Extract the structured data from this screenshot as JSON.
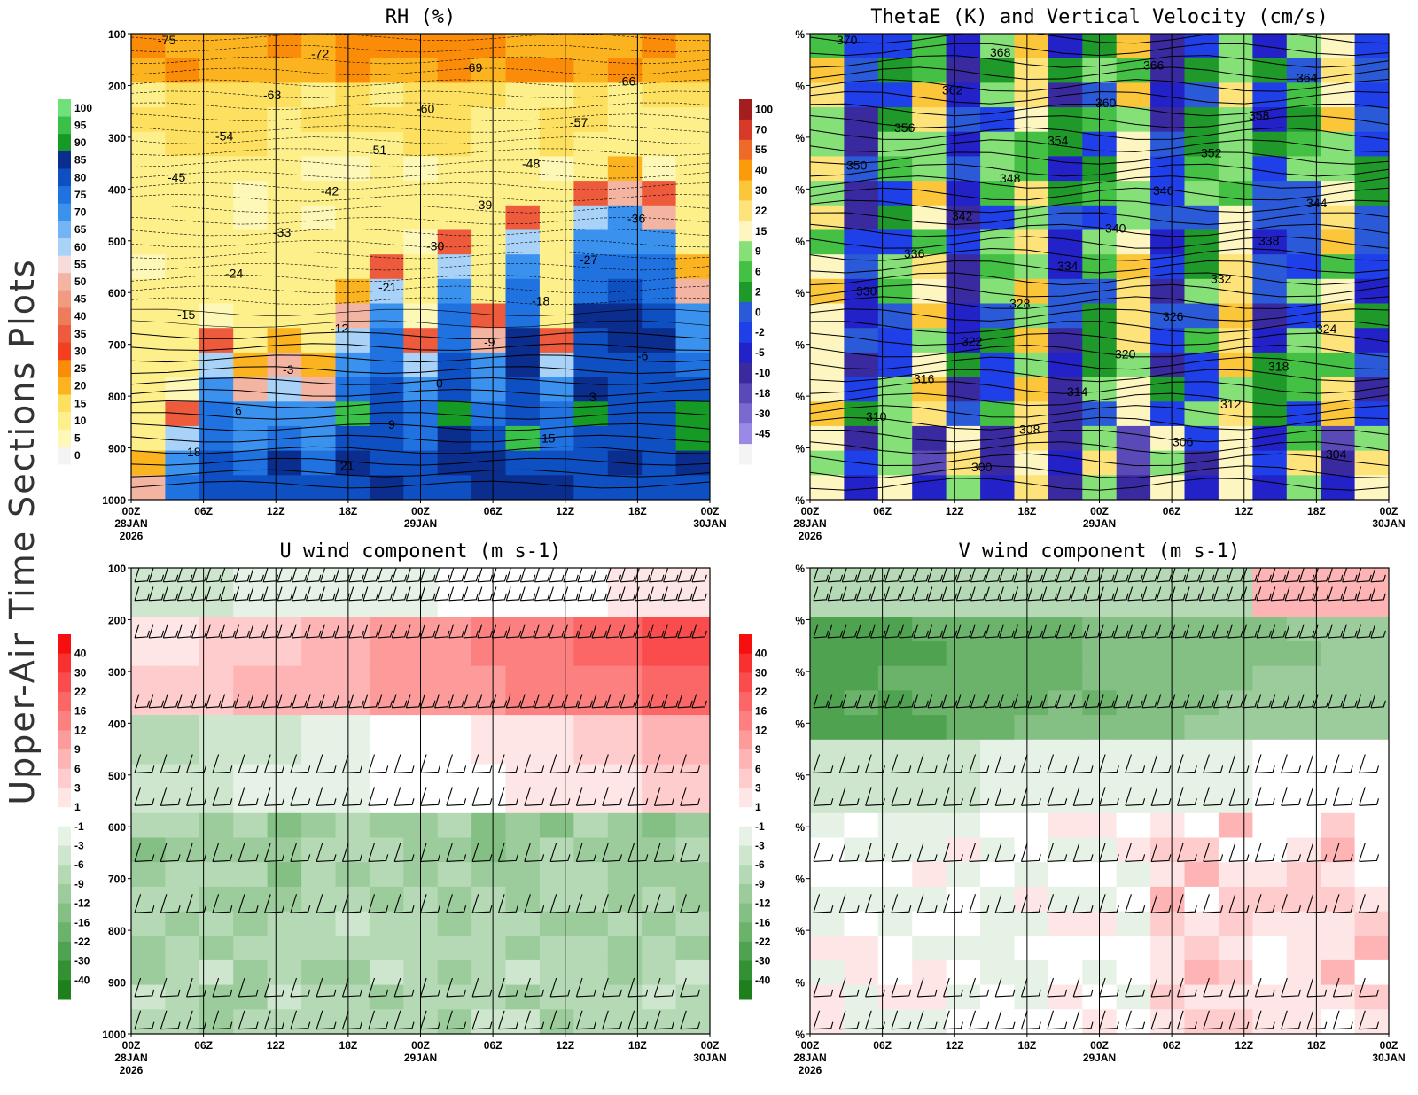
{
  "figure": {
    "side_title": "Upper-Air Time Sections Plots"
  },
  "chart_data": [
    {
      "type": "heatmap",
      "title": "RH (%)",
      "yaxis_labels": [
        "100",
        "200",
        "300",
        "400",
        "500",
        "600",
        "700",
        "800",
        "900",
        "1000"
      ],
      "ylim": [
        100,
        1000
      ],
      "xaxis": {
        "ticks": [
          "00Z",
          "06Z",
          "12Z",
          "18Z",
          "00Z",
          "06Z",
          "12Z",
          "18Z",
          "00Z"
        ],
        "date_labels": [
          "28JAN",
          "29JAN",
          "30JAN"
        ],
        "year": "2026"
      },
      "colorbar": {
        "labels": [
          "100",
          "95",
          "90",
          "85",
          "80",
          "75",
          "70",
          "65",
          "60",
          "55",
          "50",
          "45",
          "40",
          "35",
          "30",
          "25",
          "20",
          "15",
          "10",
          "5",
          "0"
        ],
        "colors": [
          "#6fe07a",
          "#38c048",
          "#169a26",
          "#0b2d8e",
          "#0e4fc2",
          "#1f72e0",
          "#3b92ee",
          "#73b4f4",
          "#a9d2f8",
          "#f8dcdc",
          "#f4b4a2",
          "#f09a80",
          "#ec7c5a",
          "#ee5a3c",
          "#f2401e",
          "#fb8c0a",
          "#fbb420",
          "#fde060",
          "#fdf08a",
          "#fef8b8",
          "#f4f4f4"
        ]
      },
      "temperature_contours": [
        "-75",
        "-72",
        "-69",
        "-66",
        "-63",
        "-60",
        "-57",
        "-54",
        "-51",
        "-48",
        "-45",
        "-42",
        "-39",
        "-36",
        "-33",
        "-30",
        "-27",
        "-24",
        "-21",
        "-18",
        "-15",
        "-12",
        "-9",
        "-6",
        "-3",
        "0",
        "3",
        "6",
        "9",
        "15",
        "18",
        "21"
      ]
    },
    {
      "type": "heatmap",
      "title": "ThetaE (K) and Vertical Velocity (cm/s)",
      "yaxis_labels": [
        "%",
        "%",
        "%",
        "%",
        "%",
        "%",
        "%",
        "%",
        "%",
        "%"
      ],
      "xaxis": {
        "ticks": [
          "00Z",
          "06Z",
          "12Z",
          "18Z",
          "00Z",
          "06Z",
          "12Z",
          "18Z",
          "00Z"
        ],
        "date_labels": [
          "28JAN",
          "29JAN",
          "30JAN"
        ],
        "year": "2026"
      },
      "colorbar": {
        "labels": [
          "100",
          "70",
          "55",
          "40",
          "30",
          "22",
          "15",
          "9",
          "6",
          "2",
          "0",
          "-2",
          "-5",
          "-10",
          "-18",
          "-30",
          "-45"
        ],
        "colors": [
          "#a51e1e",
          "#d83a2a",
          "#ee6a2a",
          "#fb9a0a",
          "#fcc63a",
          "#fde37a",
          "#fef6c0",
          "#86e078",
          "#44c044",
          "#1f9a2a",
          "#2a5ad8",
          "#1f3fe8",
          "#2222c8",
          "#3a2aa0",
          "#5a4ab8",
          "#7a6ad0",
          "#9a8ae6",
          "#f4f4f4"
        ]
      },
      "thetae_contours": [
        "370",
        "368",
        "366",
        "364",
        "362",
        "360",
        "358",
        "356",
        "354",
        "352",
        "350",
        "348",
        "346",
        "344",
        "342",
        "340",
        "338",
        "336",
        "334",
        "332",
        "330",
        "328",
        "326",
        "324",
        "322",
        "320",
        "318",
        "316",
        "314",
        "312",
        "310",
        "308",
        "306",
        "304",
        "300"
      ]
    },
    {
      "type": "heatmap",
      "title": "U wind component (m s-1)",
      "yaxis_labels": [
        "100",
        "200",
        "300",
        "400",
        "500",
        "600",
        "700",
        "800",
        "900",
        "1000"
      ],
      "xaxis": {
        "ticks": [
          "00Z",
          "06Z",
          "12Z",
          "18Z",
          "00Z",
          "06Z",
          "12Z",
          "18Z",
          "00Z"
        ],
        "date_labels": [
          "28JAN",
          "29JAN",
          "30JAN"
        ],
        "year": "2026"
      },
      "colorbar": {
        "labels": [
          "40",
          "30",
          "22",
          "16",
          "12",
          "9",
          "6",
          "3",
          "1",
          "-1",
          "-3",
          "-6",
          "-9",
          "-12",
          "-16",
          "-22",
          "-30",
          "-40"
        ],
        "colors": [
          "#f70f0f",
          "#f93030",
          "#fa4c4c",
          "#fb6666",
          "#fc8080",
          "#fd9a9a",
          "#feb4b4",
          "#fecccc",
          "#fee6e6",
          "#ffffff",
          "#e6f2e6",
          "#cde6cd",
          "#b4d9b4",
          "#9ccc9c",
          "#84bf84",
          "#6bb26b",
          "#4fa24f",
          "#339033",
          "#1d801d"
        ]
      }
    },
    {
      "type": "heatmap",
      "title": "V wind component (m s-1)",
      "yaxis_labels": [
        "%",
        "%",
        "%",
        "%",
        "%",
        "%",
        "%",
        "%",
        "%",
        "%"
      ],
      "xaxis": {
        "ticks": [
          "00Z",
          "06Z",
          "12Z",
          "18Z",
          "00Z",
          "06Z",
          "12Z",
          "18Z",
          "00Z"
        ],
        "date_labels": [
          "28JAN",
          "29JAN",
          "30JAN"
        ],
        "year": "2026"
      },
      "colorbar": {
        "labels": [
          "40",
          "30",
          "22",
          "16",
          "12",
          "9",
          "6",
          "3",
          "1",
          "-1",
          "-3",
          "-6",
          "-9",
          "-12",
          "-16",
          "-22",
          "-30",
          "-40"
        ],
        "colors": [
          "#f70f0f",
          "#f93030",
          "#fa4c4c",
          "#fb6666",
          "#fc8080",
          "#fd9a9a",
          "#feb4b4",
          "#fecccc",
          "#fee6e6",
          "#ffffff",
          "#e6f2e6",
          "#cde6cd",
          "#b4d9b4",
          "#9ccc9c",
          "#84bf84",
          "#6bb26b",
          "#4fa24f",
          "#339033",
          "#1d801d"
        ]
      }
    }
  ]
}
